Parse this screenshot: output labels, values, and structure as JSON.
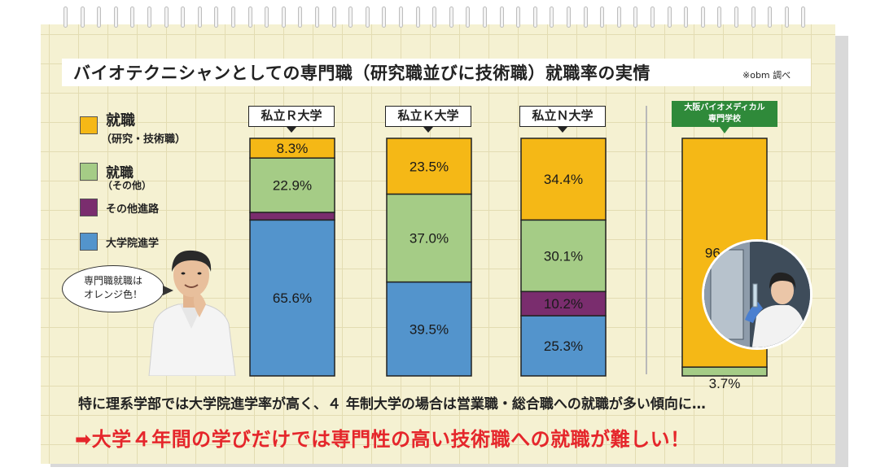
{
  "title": "バイオテクニシャンとしての専門職（研究職並びに技術職）就職率の実情",
  "source_note": "※obm 調べ",
  "legend": [
    {
      "main": "就職",
      "sub": "（研究・技術職）",
      "color": "#f5b816"
    },
    {
      "main": "就職",
      "sub": "（その他）",
      "color": "#a5cc86"
    },
    {
      "main": "その他進路",
      "sub": "",
      "color": "#7a2d6e"
    },
    {
      "main": "大学院進学",
      "sub": "",
      "color": "#5394cc"
    }
  ],
  "speech_bubble": {
    "line1": "専門職就職は",
    "line2": "オレンジ色！"
  },
  "school_label": {
    "line1": "大阪バイオメディカル",
    "line2": "専門学校"
  },
  "note": "特に理系学部では大学院進学率が高く、４ 年制大学の場合は営業職・総合職への就職が多い傾向に…",
  "conclusion": "➡大学４年間の学びだけでは専門性の高い技術職への就職が難しい！",
  "chart_data": {
    "type": "bar",
    "stacked": true,
    "unit": "%",
    "categories": [
      "私立Ｒ大学",
      "私立Ｋ大学",
      "私立Ｎ大学",
      "大阪バイオメディカル専門学校"
    ],
    "series": [
      {
        "name": "就職（研究・技術職）",
        "color": "#f5b816",
        "values": [
          8.3,
          23.5,
          34.4,
          96.3
        ],
        "labels": [
          "8.3%",
          "23.5%",
          "34.4%",
          "96.3%"
        ]
      },
      {
        "name": "就職（その他）",
        "color": "#a5cc86",
        "values": [
          22.9,
          37.0,
          30.1,
          3.7
        ],
        "labels": [
          "22.9%",
          "37.0%",
          "30.1%",
          "3.7%"
        ]
      },
      {
        "name": "その他進路",
        "color": "#7a2d6e",
        "values": [
          3.2,
          0,
          10.2,
          0
        ],
        "labels": [
          "3.2%",
          "",
          "10.2%",
          ""
        ]
      },
      {
        "name": "大学院進学",
        "color": "#5394cc",
        "values": [
          65.6,
          39.5,
          25.3,
          0
        ],
        "labels": [
          "65.6%",
          "39.5%",
          "25.3%",
          ""
        ]
      }
    ],
    "ylim": [
      0,
      100
    ],
    "grid": false
  }
}
